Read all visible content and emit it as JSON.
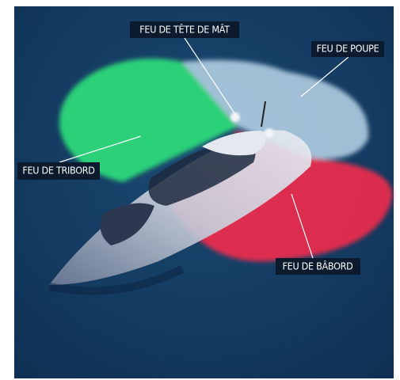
{
  "labels": {
    "masthead": "FEU DE TÊTE DE MÂT",
    "stern": "FEU DE POUPE",
    "starboard": "FEU DE TRIBORD",
    "port": "FEU DE BÂBORD"
  }
}
